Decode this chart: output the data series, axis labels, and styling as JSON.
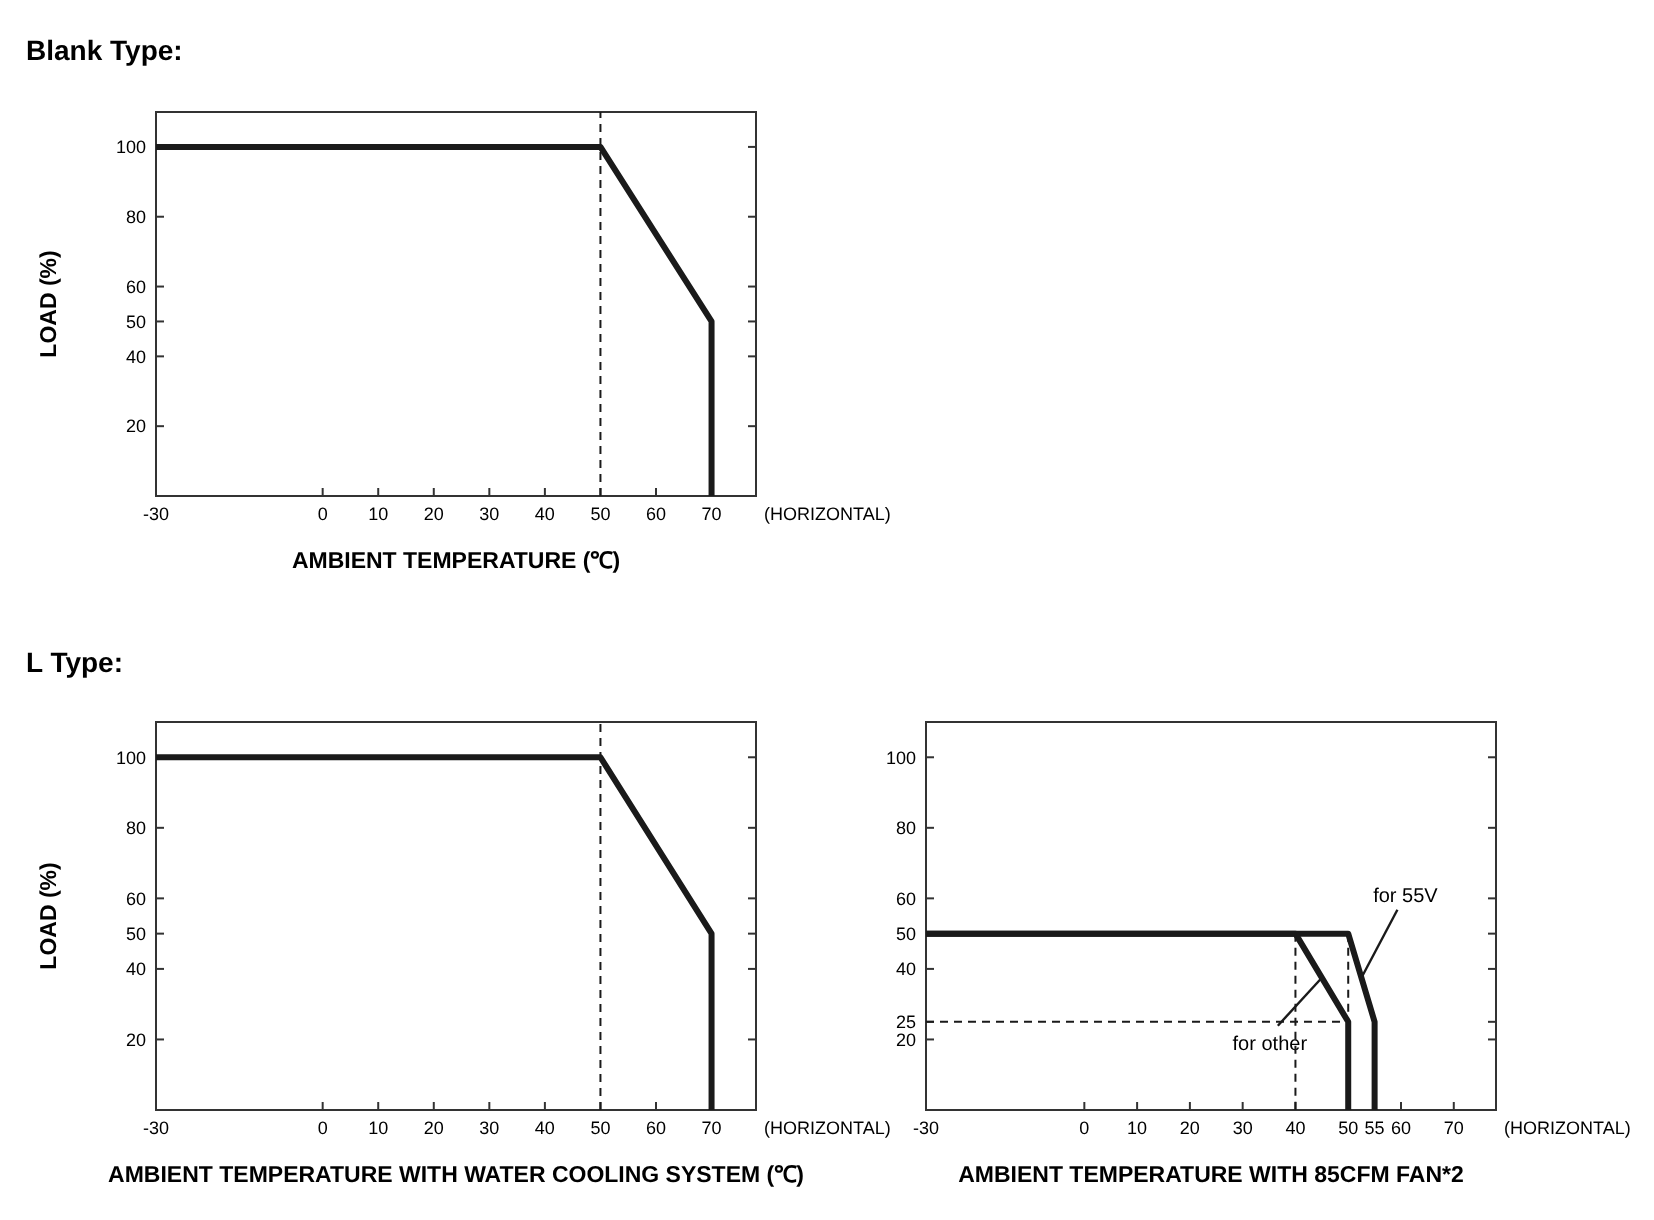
{
  "chart_data": [
    {
      "type": "line",
      "title": "Blank Type:",
      "xlabel": "AMBIENT TEMPERATURE (℃)",
      "ylabel": "LOAD (%)",
      "xlim": [
        -30,
        78
      ],
      "ylim": [
        0,
        110
      ],
      "xticks": [
        -30,
        0,
        10,
        20,
        30,
        40,
        50,
        60,
        70
      ],
      "yticks": [
        20,
        40,
        50,
        60,
        80,
        100
      ],
      "grid": false,
      "marker": "none",
      "annotations": [
        "(HORIZONTAL)"
      ],
      "ref_lines": [
        {
          "axis": "x",
          "value": 50,
          "line_style": "dashed",
          "color": "#1a1a1a"
        }
      ],
      "series": [
        {
          "color": "#1a1a1a",
          "x": [
            -30,
            50,
            70,
            70
          ],
          "values": [
            100,
            100,
            50,
            0
          ]
        }
      ]
    },
    {
      "type": "line",
      "title": "L Type:",
      "xlabel": "AMBIENT TEMPERATURE WITH WATER COOLING SYSTEM (℃)",
      "ylabel": "LOAD (%)",
      "xlim": [
        -30,
        78
      ],
      "ylim": [
        0,
        110
      ],
      "xticks": [
        -30,
        0,
        10,
        20,
        30,
        40,
        50,
        60,
        70
      ],
      "yticks": [
        20,
        40,
        50,
        60,
        80,
        100
      ],
      "grid": false,
      "marker": "none",
      "annotations": [
        "(HORIZONTAL)"
      ],
      "ref_lines": [
        {
          "axis": "x",
          "value": 50,
          "line_style": "dashed",
          "color": "#1a1a1a"
        }
      ],
      "series": [
        {
          "color": "#1a1a1a",
          "x": [
            -30,
            50,
            70,
            70
          ],
          "values": [
            100,
            100,
            50,
            0
          ]
        }
      ]
    },
    {
      "type": "line",
      "xlabel": "AMBIENT TEMPERATURE WITH 85CFM FAN*2",
      "xlim": [
        -30,
        78
      ],
      "ylim": [
        0,
        110
      ],
      "xticks": [
        -30,
        0,
        10,
        20,
        30,
        40,
        50,
        55,
        60,
        70
      ],
      "yticks": [
        20,
        25,
        40,
        50,
        60,
        80,
        100
      ],
      "grid": false,
      "marker": "none",
      "annotations": [
        "(HORIZONTAL)",
        {
          "text": "for 55V",
          "x": 52.5,
          "y": 37.5
        },
        {
          "text": "for other",
          "x": 45,
          "y": 37.5
        }
      ],
      "series": [
        {
          "color": "#1a1a1a",
          "x": [
            -30,
            50,
            55,
            55
          ],
          "values": [
            50,
            50,
            25,
            0
          ]
        },
        {
          "color": "#1a1a1a",
          "x": [
            -30,
            40,
            50,
            50
          ],
          "values": [
            50,
            50,
            25,
            0
          ]
        },
        {
          "color": "#1a1a1a",
          "line_style": "dashed",
          "x": [
            40,
            40
          ],
          "values": [
            50,
            0
          ]
        },
        {
          "color": "#1a1a1a",
          "line_style": "dashed",
          "x": [
            -30,
            50
          ],
          "values": [
            25,
            25
          ]
        },
        {
          "color": "#1a1a1a",
          "line_style": "dashed",
          "x": [
            50,
            50
          ],
          "values": [
            50,
            25
          ]
        }
      ]
    }
  ]
}
